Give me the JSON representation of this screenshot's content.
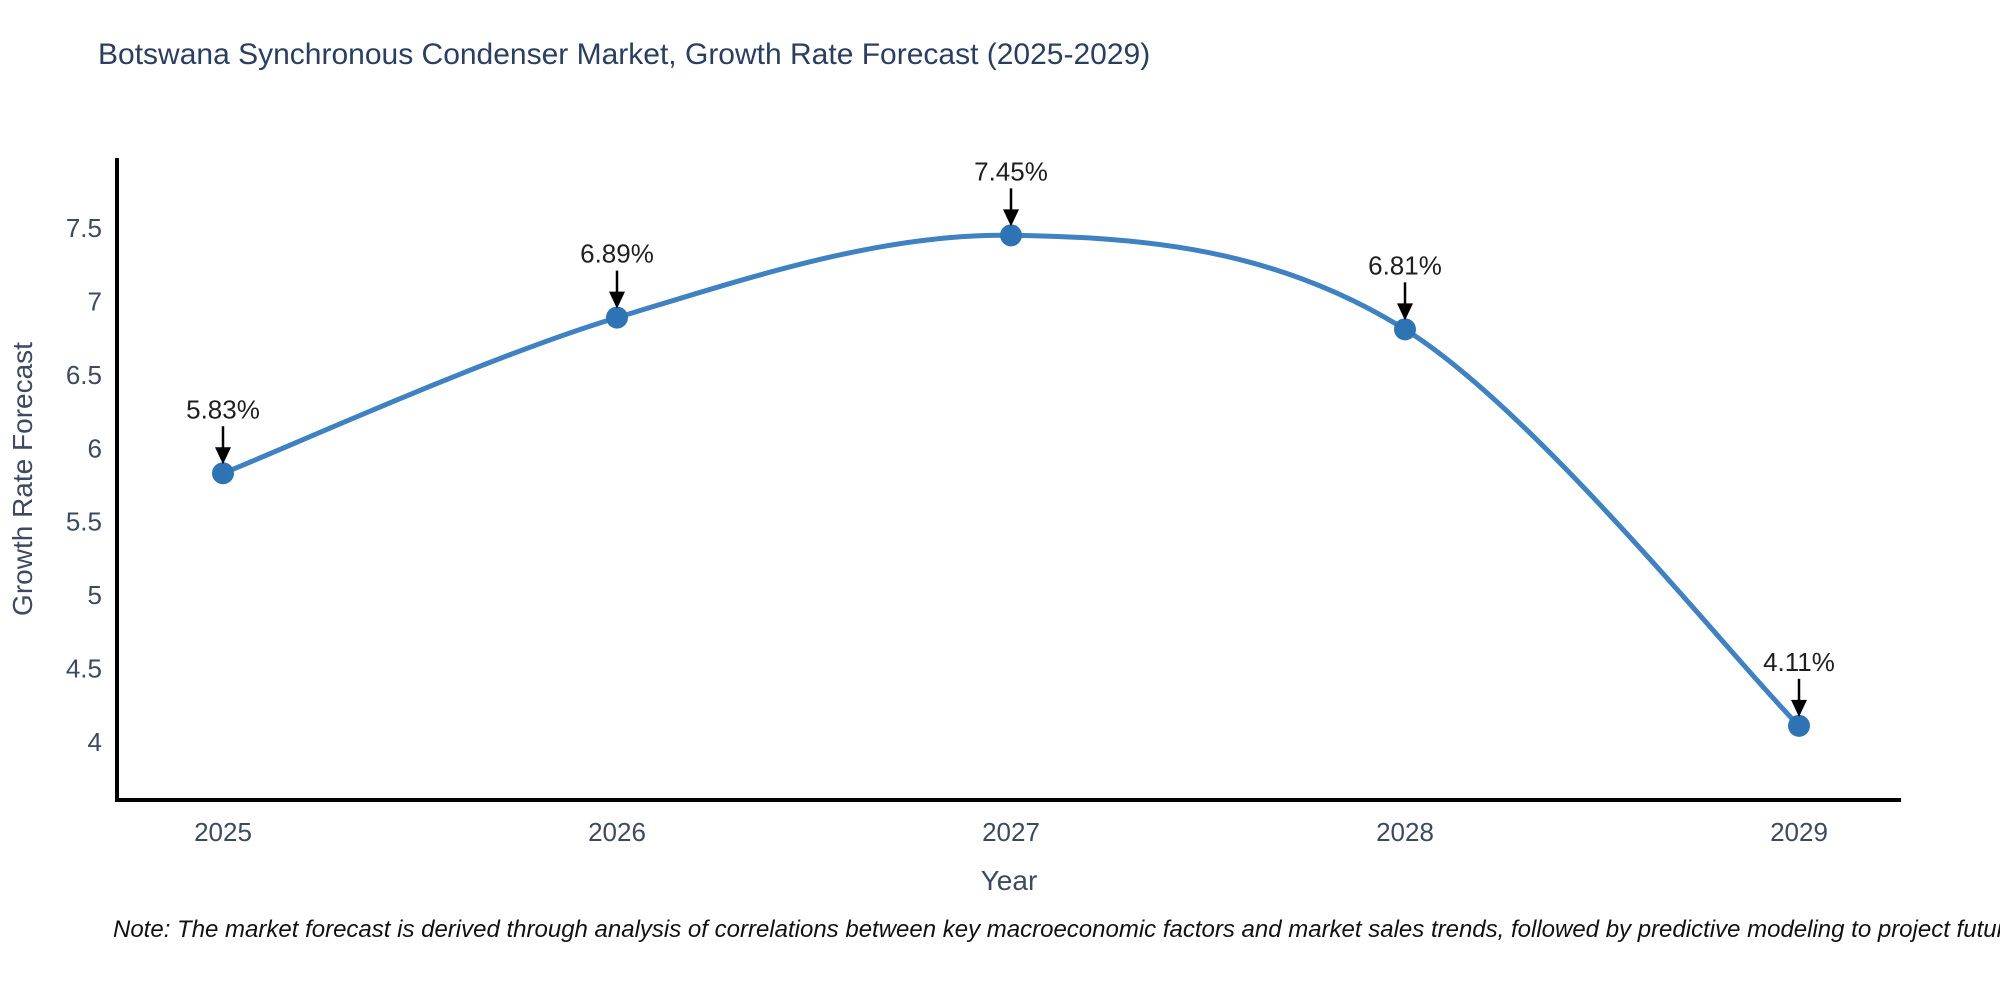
{
  "title": "Botswana Synchronous Condenser Market, Growth Rate Forecast (2025-2029)",
  "note": "Note: The market forecast is derived through analysis of correlations between key macroeconomic factors and market sales trends, followed by predictive modeling to project future sales",
  "chart_data": {
    "type": "line",
    "title": "Botswana Synchronous Condenser Market, Growth Rate Forecast (2025-2029)",
    "x": [
      "2025",
      "2026",
      "2027",
      "2028",
      "2029"
    ],
    "values": [
      5.83,
      6.89,
      7.45,
      6.81,
      4.11
    ],
    "point_labels": [
      "5.83%",
      "6.89%",
      "7.45%",
      "6.81%",
      "4.11%"
    ],
    "xlabel": "Year",
    "ylabel": "Growth Rate Forecast",
    "yticks": [
      4,
      4.5,
      5,
      5.5,
      6,
      6.5,
      7,
      7.5
    ],
    "ylim": [
      3.6,
      7.95
    ],
    "line_shape": "spline",
    "grid": false,
    "legend": "none",
    "annotation_style": "value label above point with downward black arrow",
    "colors": {
      "line": "#3f81c1",
      "marker": "#2e74b5",
      "axis": "#000000",
      "tick_text": "#3d4961",
      "title_text": "#2a3f5f",
      "annotation_text": "#1f1f1f",
      "background": "#ffffff"
    }
  }
}
